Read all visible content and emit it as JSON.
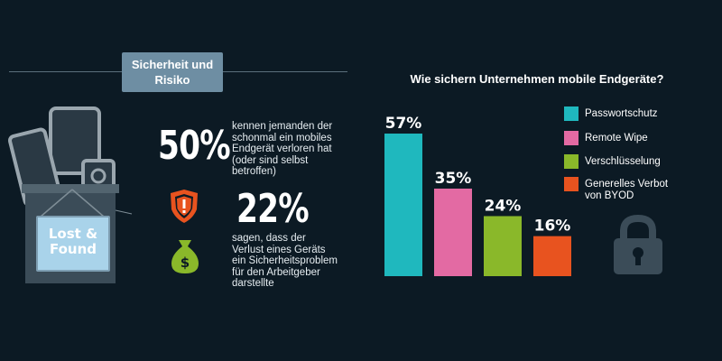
{
  "header": {
    "section_label": "Sicherheit und Risiko"
  },
  "left_panel": {
    "illustration_label": "Lost & Found",
    "stat1": {
      "value": "50%",
      "text": [
        "kennen jemanden der",
        "schonmal ein mobiles",
        "Endgerät verloren hat",
        "(oder sind selbst",
        "betroffen)"
      ]
    },
    "stat2": {
      "value": "22%",
      "text": [
        "sagen, dass der",
        "Verlust eines Geräts",
        "ein Sicherheitsproblem",
        "für den Arbeitgeber",
        "darstellte"
      ]
    },
    "icons": [
      "shield-warning-icon",
      "money-bag-icon",
      "padlock-icon"
    ]
  },
  "colors": {
    "background": "#0c1a24",
    "teal": "#1fb8be",
    "pink": "#e36aa3",
    "green": "#8ab82a",
    "orange": "#e8531f"
  },
  "chart_data": {
    "type": "bar",
    "title": "Wie sichern Unternehmen mobile Endgeräte?",
    "categories": [
      "Passwortschutz",
      "Remote Wipe",
      "Verschlüsselung",
      "Generelles Verbot von BYOD"
    ],
    "values": [
      57,
      35,
      24,
      16
    ],
    "value_labels": [
      "57%",
      "35%",
      "24%",
      "16%"
    ],
    "colors": [
      "#1fb8be",
      "#e36aa3",
      "#8ab82a",
      "#e8531f"
    ],
    "ylim": [
      0,
      57
    ],
    "legend": {
      "position": "right",
      "entries": [
        "Passwortschutz",
        "Remote Wipe",
        "Verschlüsselung",
        "Generelles Verbot von BYOD"
      ],
      "entry_lines": [
        [
          "Passwortschutz"
        ],
        [
          "Remote Wipe"
        ],
        [
          "Verschlüsselung"
        ],
        [
          "Generelles Verbot",
          "von BYOD"
        ]
      ]
    },
    "grid": false
  }
}
